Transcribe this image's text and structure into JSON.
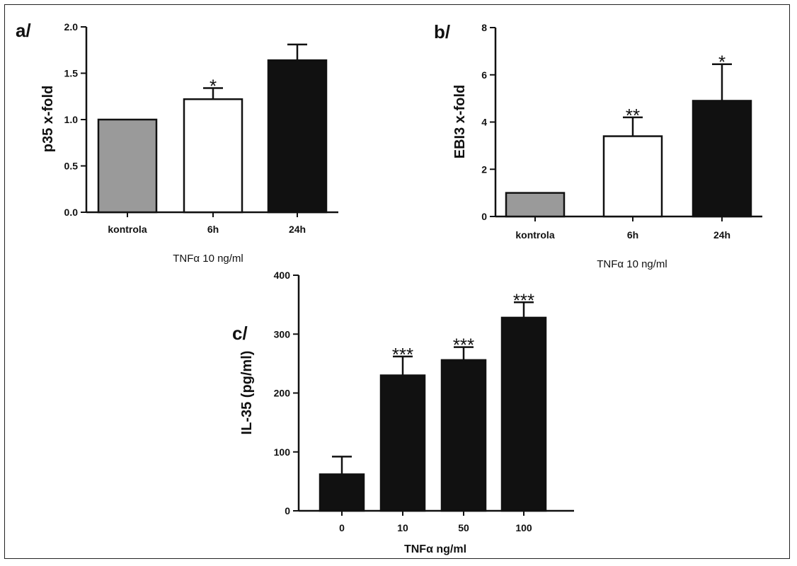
{
  "chart_data": [
    {
      "type": "bar",
      "panel": "a/",
      "title": "",
      "ylabel": "p35 x-fold",
      "xlabel": "TNFα 10 ng/ml",
      "categories": [
        "kontrola",
        "6h",
        "24h"
      ],
      "values": [
        1.0,
        1.22,
        1.64
      ],
      "errors": [
        0,
        0.12,
        0.17
      ],
      "significance": [
        "",
        "*",
        ""
      ],
      "bar_colors": [
        "#9a9a9a",
        "#ffffff",
        "#111111"
      ],
      "ylim": [
        0,
        2.0
      ],
      "yticks": [
        "0.0",
        "0.5",
        "1.0",
        "1.5",
        "2.0"
      ],
      "grid": false
    },
    {
      "type": "bar",
      "panel": "b/",
      "title": "",
      "ylabel": "EBI3 x-fold",
      "xlabel": "TNFα 10 ng/ml",
      "categories": [
        "kontrola",
        "6h",
        "24h"
      ],
      "values": [
        1.0,
        3.4,
        4.9
      ],
      "errors": [
        0,
        0.8,
        1.55
      ],
      "significance": [
        "",
        "**",
        "*"
      ],
      "bar_colors": [
        "#9a9a9a",
        "#ffffff",
        "#111111"
      ],
      "ylim": [
        0,
        8
      ],
      "yticks": [
        "0",
        "2",
        "4",
        "6",
        "8"
      ],
      "grid": false
    },
    {
      "type": "bar",
      "panel": "c/",
      "title": "",
      "ylabel": "IL-35 (pg/ml)",
      "xlabel": "TNFα ng/ml",
      "categories": [
        "0",
        "10",
        "50",
        "100"
      ],
      "values": [
        62,
        230,
        256,
        328
      ],
      "errors": [
        30,
        32,
        22,
        26
      ],
      "significance": [
        "",
        "***",
        "***",
        "***"
      ],
      "bar_colors": [
        "#111111",
        "#111111",
        "#111111",
        "#111111"
      ],
      "ylim": [
        0,
        400
      ],
      "yticks": [
        "0",
        "100",
        "200",
        "300",
        "400"
      ],
      "grid": false
    }
  ]
}
